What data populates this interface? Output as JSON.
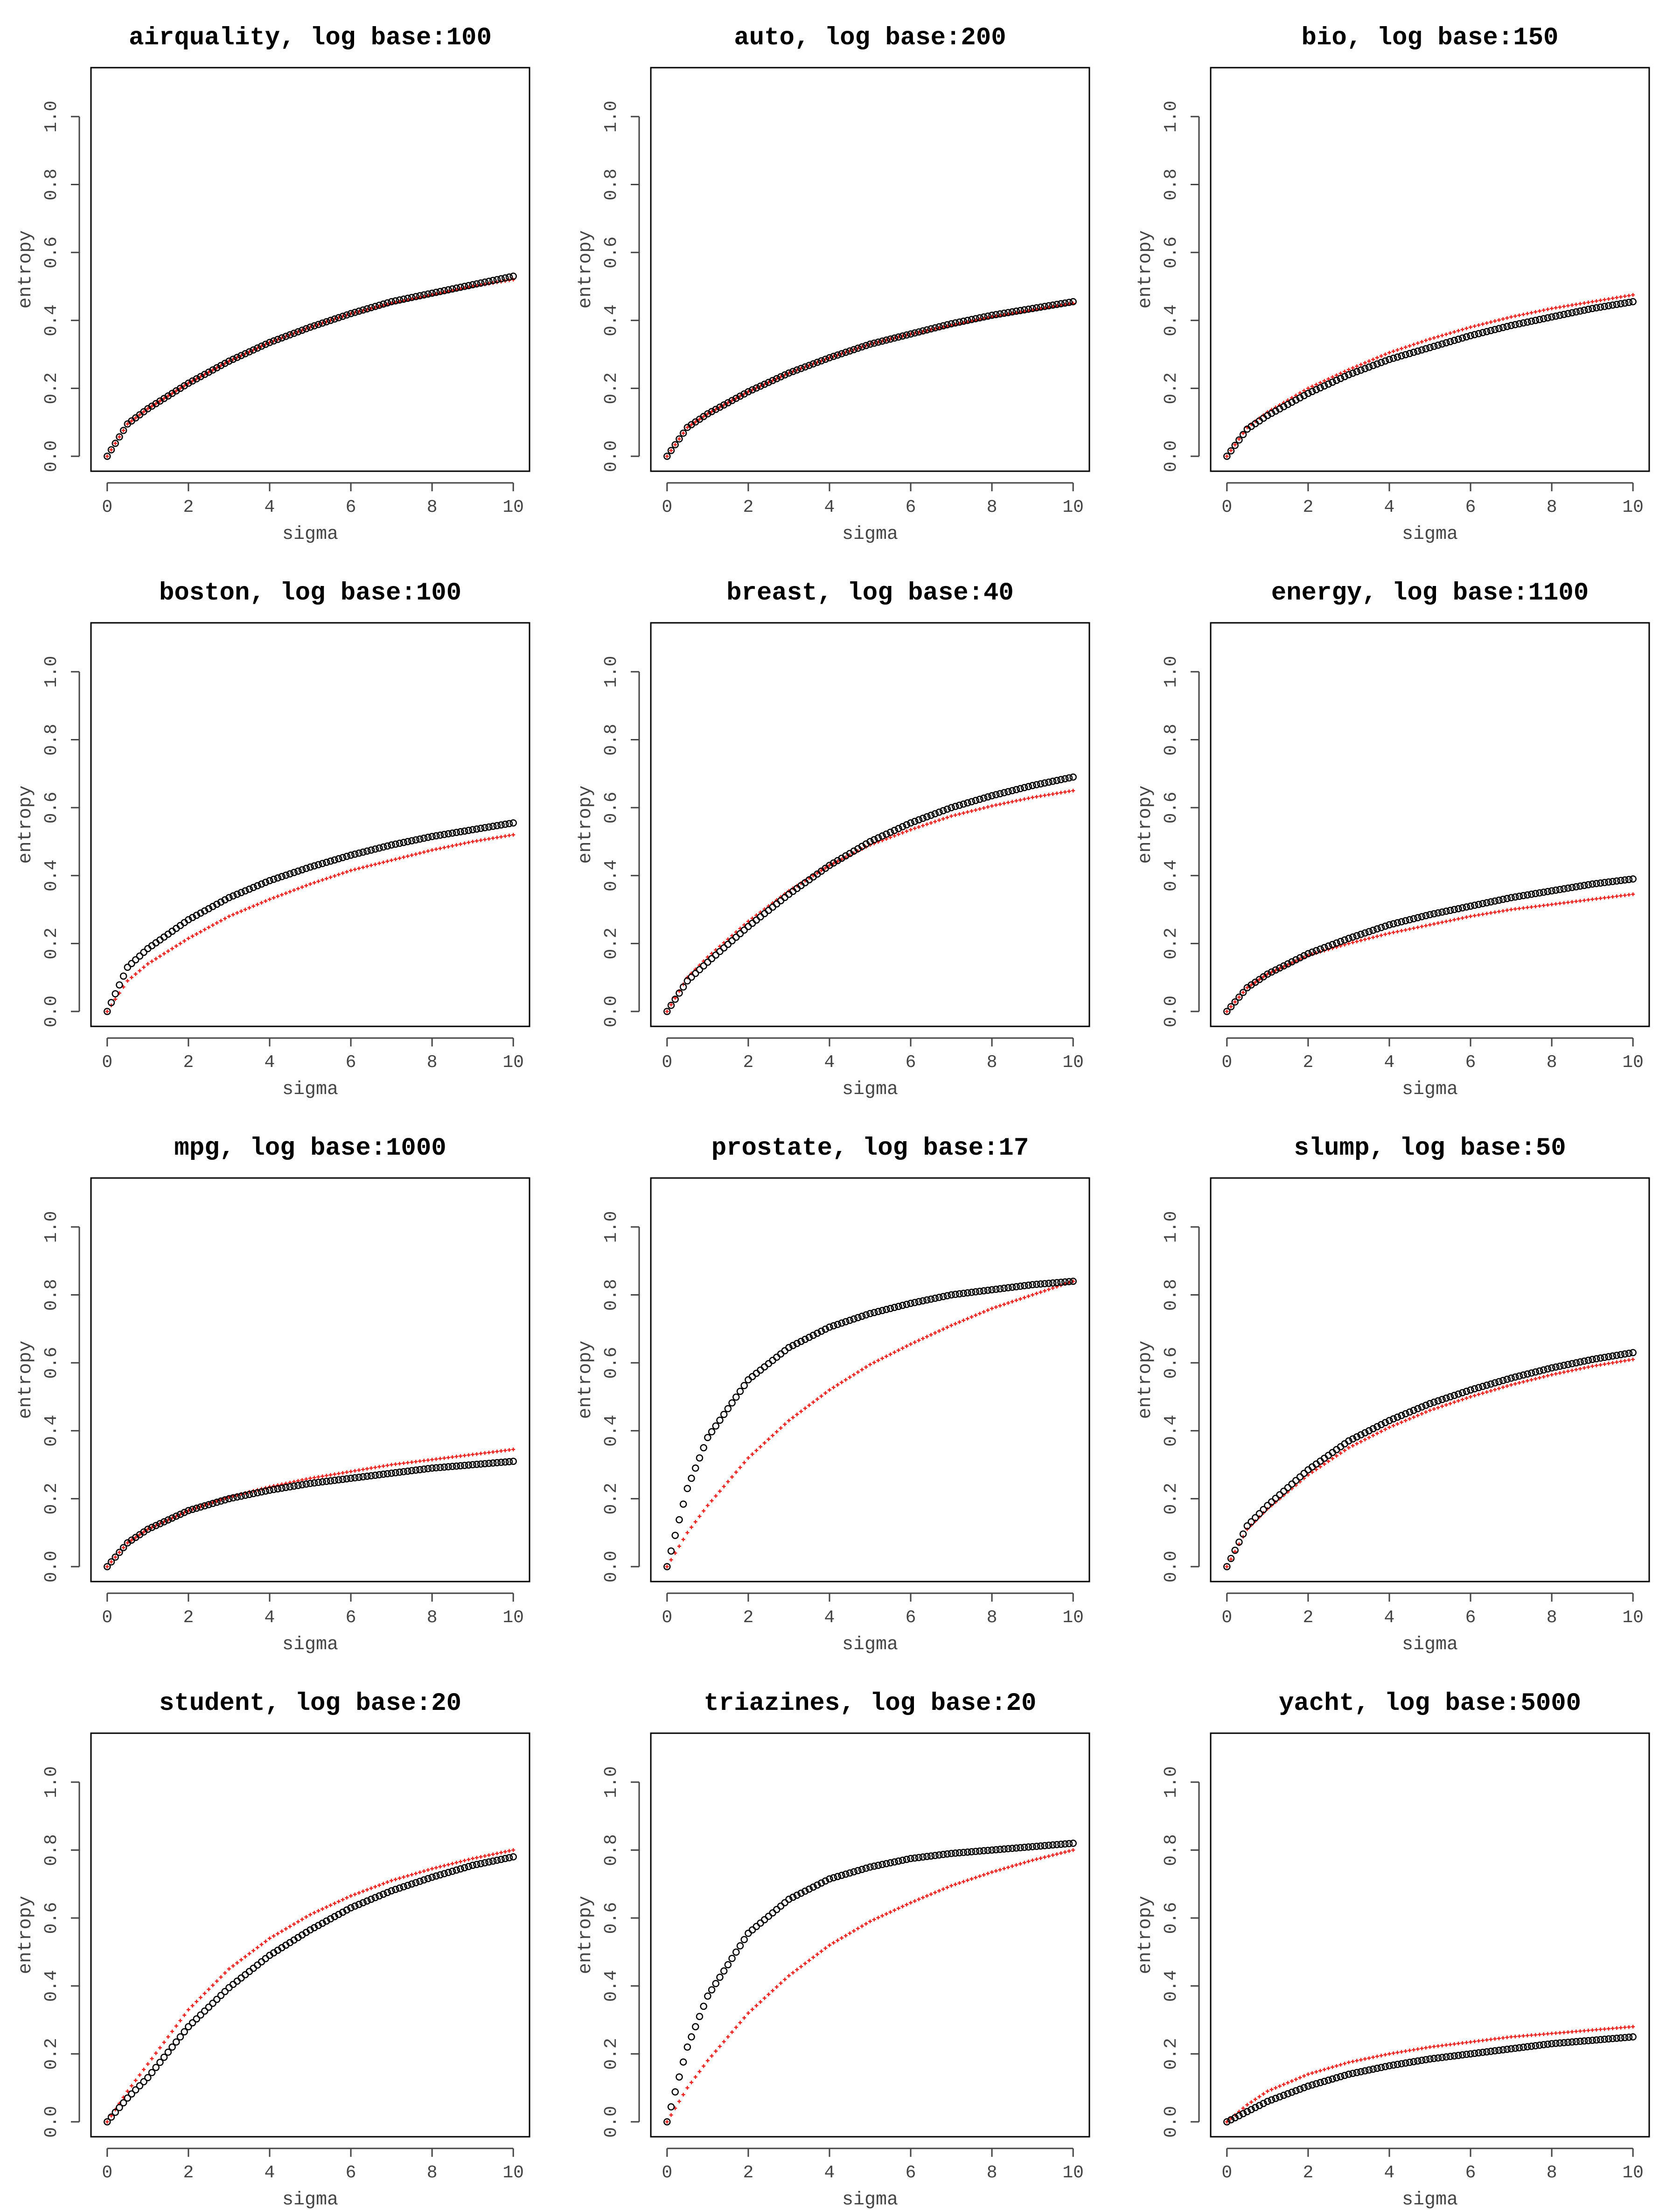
{
  "colors": {
    "black_series": "#000000",
    "red_series": "#e8201e"
  },
  "chart_data": [
    {
      "type": "scatter",
      "title": "airquality, log base:100",
      "xlabel": "sigma",
      "ylabel": "entropy",
      "xlim": [
        0,
        10
      ],
      "ylim": [
        0,
        1.1
      ],
      "xticks": [
        "0",
        "2",
        "4",
        "6",
        "8",
        "10"
      ],
      "yticks": [
        "0.0",
        "0.2",
        "0.4",
        "0.6",
        "0.8",
        "1.0"
      ],
      "series": [
        {
          "name": "black",
          "marker": "circle",
          "x": [
            0,
            0.5,
            1,
            2,
            3,
            4,
            5,
            6,
            7,
            8,
            9,
            10
          ],
          "y": [
            0,
            0.095,
            0.14,
            0.215,
            0.28,
            0.335,
            0.38,
            0.42,
            0.455,
            0.48,
            0.505,
            0.53
          ]
        },
        {
          "name": "red",
          "marker": "plus",
          "x": [
            0,
            0.5,
            1,
            2,
            3,
            4,
            5,
            6,
            7,
            8,
            9,
            10
          ],
          "y": [
            0,
            0.095,
            0.14,
            0.215,
            0.28,
            0.335,
            0.38,
            0.42,
            0.45,
            0.475,
            0.5,
            0.52
          ]
        }
      ]
    },
    {
      "type": "scatter",
      "title": "auto, log base:200",
      "xlabel": "sigma",
      "ylabel": "entropy",
      "xlim": [
        0,
        10
      ],
      "ylim": [
        0,
        1.1
      ],
      "xticks": [
        "0",
        "2",
        "4",
        "6",
        "8",
        "10"
      ],
      "yticks": [
        "0.0",
        "0.2",
        "0.4",
        "0.6",
        "0.8",
        "1.0"
      ],
      "series": [
        {
          "name": "black",
          "marker": "circle",
          "x": [
            0,
            0.5,
            1,
            2,
            3,
            4,
            5,
            6,
            7,
            8,
            9,
            10
          ],
          "y": [
            0,
            0.085,
            0.125,
            0.19,
            0.245,
            0.29,
            0.33,
            0.36,
            0.39,
            0.415,
            0.435,
            0.455
          ]
        },
        {
          "name": "red",
          "marker": "plus",
          "x": [
            0,
            0.5,
            1,
            2,
            3,
            4,
            5,
            6,
            7,
            8,
            9,
            10
          ],
          "y": [
            0,
            0.085,
            0.125,
            0.19,
            0.245,
            0.29,
            0.33,
            0.36,
            0.385,
            0.41,
            0.43,
            0.45
          ]
        }
      ]
    },
    {
      "type": "scatter",
      "title": "bio, log base:150",
      "xlabel": "sigma",
      "ylabel": "entropy",
      "xlim": [
        0,
        10
      ],
      "ylim": [
        0,
        1.1
      ],
      "xticks": [
        "0",
        "2",
        "4",
        "6",
        "8",
        "10"
      ],
      "yticks": [
        "0.0",
        "0.2",
        "0.4",
        "0.6",
        "0.8",
        "1.0"
      ],
      "series": [
        {
          "name": "black",
          "marker": "circle",
          "x": [
            0,
            0.5,
            1,
            2,
            3,
            4,
            5,
            6,
            7,
            8,
            9,
            10
          ],
          "y": [
            0,
            0.08,
            0.12,
            0.185,
            0.24,
            0.285,
            0.32,
            0.355,
            0.385,
            0.41,
            0.435,
            0.455
          ]
        },
        {
          "name": "red",
          "marker": "plus",
          "x": [
            0,
            0.5,
            1,
            2,
            3,
            4,
            5,
            6,
            7,
            8,
            9,
            10
          ],
          "y": [
            0,
            0.085,
            0.13,
            0.2,
            0.255,
            0.305,
            0.345,
            0.38,
            0.41,
            0.435,
            0.455,
            0.475
          ]
        }
      ]
    },
    {
      "type": "scatter",
      "title": "boston, log base:100",
      "xlabel": "sigma",
      "ylabel": "entropy",
      "xlim": [
        0,
        10
      ],
      "ylim": [
        0,
        1.1
      ],
      "xticks": [
        "0",
        "2",
        "4",
        "6",
        "8",
        "10"
      ],
      "yticks": [
        "0.0",
        "0.2",
        "0.4",
        "0.6",
        "0.8",
        "1.0"
      ],
      "series": [
        {
          "name": "black",
          "marker": "circle",
          "x": [
            0,
            0.5,
            1,
            2,
            3,
            4,
            5,
            6,
            7,
            8,
            9,
            10
          ],
          "y": [
            0,
            0.13,
            0.185,
            0.27,
            0.335,
            0.385,
            0.425,
            0.46,
            0.49,
            0.515,
            0.535,
            0.555
          ]
        },
        {
          "name": "red",
          "marker": "plus",
          "x": [
            0,
            0.5,
            1,
            2,
            3,
            4,
            5,
            6,
            7,
            8,
            9,
            10
          ],
          "y": [
            0,
            0.09,
            0.14,
            0.215,
            0.28,
            0.33,
            0.375,
            0.415,
            0.445,
            0.475,
            0.5,
            0.52
          ]
        }
      ]
    },
    {
      "type": "scatter",
      "title": "breast, log base:40",
      "xlabel": "sigma",
      "ylabel": "entropy",
      "xlim": [
        0,
        10
      ],
      "ylim": [
        0,
        1.1
      ],
      "xticks": [
        "0",
        "2",
        "4",
        "6",
        "8",
        "10"
      ],
      "yticks": [
        "0.0",
        "0.2",
        "0.4",
        "0.6",
        "0.8",
        "1.0"
      ],
      "series": [
        {
          "name": "black",
          "marker": "circle",
          "x": [
            0,
            0.5,
            1,
            2,
            3,
            4,
            5,
            6,
            7,
            8,
            9,
            10
          ],
          "y": [
            0,
            0.09,
            0.145,
            0.25,
            0.345,
            0.43,
            0.5,
            0.555,
            0.6,
            0.635,
            0.665,
            0.69
          ]
        },
        {
          "name": "red",
          "marker": "plus",
          "x": [
            0,
            0.5,
            1,
            2,
            3,
            4,
            5,
            6,
            7,
            8,
            9,
            10
          ],
          "y": [
            0,
            0.1,
            0.16,
            0.265,
            0.355,
            0.43,
            0.49,
            0.535,
            0.575,
            0.605,
            0.63,
            0.65
          ]
        }
      ]
    },
    {
      "type": "scatter",
      "title": "energy, log base:1100",
      "xlabel": "sigma",
      "ylabel": "entropy",
      "xlim": [
        0,
        10
      ],
      "ylim": [
        0,
        1.1
      ],
      "xticks": [
        "0",
        "2",
        "4",
        "6",
        "8",
        "10"
      ],
      "yticks": [
        "0.0",
        "0.2",
        "0.4",
        "0.6",
        "0.8",
        "1.0"
      ],
      "series": [
        {
          "name": "black",
          "marker": "circle",
          "x": [
            0,
            0.5,
            1,
            2,
            3,
            4,
            5,
            6,
            7,
            8,
            9,
            10
          ],
          "y": [
            0,
            0.07,
            0.11,
            0.17,
            0.215,
            0.255,
            0.285,
            0.31,
            0.335,
            0.355,
            0.375,
            0.39
          ]
        },
        {
          "name": "red",
          "marker": "plus",
          "x": [
            0,
            0.5,
            1,
            2,
            3,
            4,
            5,
            6,
            7,
            8,
            9,
            10
          ],
          "y": [
            0,
            0.07,
            0.11,
            0.165,
            0.2,
            0.23,
            0.255,
            0.28,
            0.3,
            0.315,
            0.33,
            0.345
          ]
        }
      ]
    },
    {
      "type": "scatter",
      "title": "mpg, log base:1000",
      "xlabel": "sigma",
      "ylabel": "entropy",
      "xlim": [
        0,
        10
      ],
      "ylim": [
        0,
        1.1
      ],
      "xticks": [
        "0",
        "2",
        "4",
        "6",
        "8",
        "10"
      ],
      "yticks": [
        "0.0",
        "0.2",
        "0.4",
        "0.6",
        "0.8",
        "1.0"
      ],
      "series": [
        {
          "name": "black",
          "marker": "circle",
          "x": [
            0,
            0.5,
            1,
            2,
            3,
            4,
            5,
            6,
            7,
            8,
            9,
            10
          ],
          "y": [
            0,
            0.07,
            0.11,
            0.165,
            0.2,
            0.225,
            0.245,
            0.26,
            0.275,
            0.29,
            0.3,
            0.31
          ]
        },
        {
          "name": "red",
          "marker": "plus",
          "x": [
            0,
            0.5,
            1,
            2,
            3,
            4,
            5,
            6,
            7,
            8,
            9,
            10
          ],
          "y": [
            0,
            0.07,
            0.11,
            0.165,
            0.205,
            0.235,
            0.26,
            0.28,
            0.3,
            0.315,
            0.33,
            0.345
          ]
        }
      ]
    },
    {
      "type": "scatter",
      "title": "prostate, log base:17",
      "xlabel": "sigma",
      "ylabel": "entropy",
      "xlim": [
        0,
        10
      ],
      "ylim": [
        0,
        1.1
      ],
      "xticks": [
        "0",
        "2",
        "4",
        "6",
        "8",
        "10"
      ],
      "yticks": [
        "0.0",
        "0.2",
        "0.4",
        "0.6",
        "0.8",
        "1.0"
      ],
      "series": [
        {
          "name": "black",
          "marker": "circle",
          "x": [
            0,
            0.5,
            1,
            2,
            3,
            4,
            5,
            6,
            7,
            8,
            9,
            10
          ],
          "y": [
            0,
            0.23,
            0.38,
            0.55,
            0.645,
            0.705,
            0.745,
            0.775,
            0.8,
            0.815,
            0.83,
            0.84
          ]
        },
        {
          "name": "red",
          "marker": "plus",
          "x": [
            0,
            0.5,
            1,
            2,
            3,
            4,
            5,
            6,
            7,
            8,
            9,
            10
          ],
          "y": [
            0,
            0.1,
            0.18,
            0.32,
            0.43,
            0.52,
            0.595,
            0.655,
            0.71,
            0.76,
            0.8,
            0.84
          ]
        }
      ]
    },
    {
      "type": "scatter",
      "title": "slump, log base:50",
      "xlabel": "sigma",
      "ylabel": "entropy",
      "xlim": [
        0,
        10
      ],
      "ylim": [
        0,
        1.1
      ],
      "xticks": [
        "0",
        "2",
        "4",
        "6",
        "8",
        "10"
      ],
      "yticks": [
        "0.0",
        "0.2",
        "0.4",
        "0.6",
        "0.8",
        "1.0"
      ],
      "series": [
        {
          "name": "black",
          "marker": "circle",
          "x": [
            0,
            0.5,
            1,
            2,
            3,
            4,
            5,
            6,
            7,
            8,
            9,
            10
          ],
          "y": [
            0,
            0.12,
            0.18,
            0.285,
            0.37,
            0.43,
            0.48,
            0.52,
            0.555,
            0.585,
            0.61,
            0.63
          ]
        },
        {
          "name": "red",
          "marker": "plus",
          "x": [
            0,
            0.5,
            1,
            2,
            3,
            4,
            5,
            6,
            7,
            8,
            9,
            10
          ],
          "y": [
            0,
            0.11,
            0.17,
            0.27,
            0.35,
            0.41,
            0.46,
            0.5,
            0.535,
            0.565,
            0.59,
            0.61
          ]
        }
      ]
    },
    {
      "type": "scatter",
      "title": "student, log base:20",
      "xlabel": "sigma",
      "ylabel": "entropy",
      "xlim": [
        0,
        10
      ],
      "ylim": [
        0,
        1.1
      ],
      "xticks": [
        "0",
        "2",
        "4",
        "6",
        "8",
        "10"
      ],
      "yticks": [
        "0.0",
        "0.2",
        "0.4",
        "0.6",
        "0.8",
        "1.0"
      ],
      "series": [
        {
          "name": "black",
          "marker": "circle",
          "x": [
            0,
            0.5,
            1,
            2,
            3,
            4,
            5,
            6,
            7,
            8,
            9,
            10
          ],
          "y": [
            0,
            0.07,
            0.13,
            0.28,
            0.395,
            0.49,
            0.565,
            0.63,
            0.68,
            0.72,
            0.755,
            0.78
          ]
        },
        {
          "name": "red",
          "marker": "plus",
          "x": [
            0,
            0.5,
            1,
            2,
            3,
            4,
            5,
            6,
            7,
            8,
            9,
            10
          ],
          "y": [
            0,
            0.09,
            0.17,
            0.33,
            0.45,
            0.54,
            0.61,
            0.665,
            0.71,
            0.745,
            0.775,
            0.8
          ]
        }
      ]
    },
    {
      "type": "scatter",
      "title": "triazines, log base:20",
      "xlabel": "sigma",
      "ylabel": "entropy",
      "xlim": [
        0,
        10
      ],
      "ylim": [
        0,
        1.1
      ],
      "xticks": [
        "0",
        "2",
        "4",
        "6",
        "8",
        "10"
      ],
      "yticks": [
        "0.0",
        "0.2",
        "0.4",
        "0.6",
        "0.8",
        "1.0"
      ],
      "series": [
        {
          "name": "black",
          "marker": "circle",
          "x": [
            0,
            0.5,
            1,
            2,
            3,
            4,
            5,
            6,
            7,
            8,
            9,
            10
          ],
          "y": [
            0,
            0.22,
            0.37,
            0.555,
            0.655,
            0.715,
            0.75,
            0.775,
            0.79,
            0.8,
            0.81,
            0.82
          ]
        },
        {
          "name": "red",
          "marker": "plus",
          "x": [
            0,
            0.5,
            1,
            2,
            3,
            4,
            5,
            6,
            7,
            8,
            9,
            10
          ],
          "y": [
            0,
            0.1,
            0.18,
            0.32,
            0.43,
            0.52,
            0.59,
            0.645,
            0.695,
            0.735,
            0.77,
            0.8
          ]
        }
      ]
    },
    {
      "type": "scatter",
      "title": "yacht, log base:5000",
      "xlabel": "sigma",
      "ylabel": "entropy",
      "xlim": [
        0,
        10
      ],
      "ylim": [
        0,
        1.1
      ],
      "xticks": [
        "0",
        "2",
        "4",
        "6",
        "8",
        "10"
      ],
      "yticks": [
        "0.0",
        "0.2",
        "0.4",
        "0.6",
        "0.8",
        "1.0"
      ],
      "series": [
        {
          "name": "black",
          "marker": "circle",
          "x": [
            0,
            0.5,
            1,
            2,
            3,
            4,
            5,
            6,
            7,
            8,
            9,
            10
          ],
          "y": [
            0,
            0.03,
            0.06,
            0.105,
            0.14,
            0.165,
            0.185,
            0.2,
            0.215,
            0.23,
            0.24,
            0.25
          ]
        },
        {
          "name": "red",
          "marker": "plus",
          "x": [
            0,
            0.5,
            1,
            2,
            3,
            4,
            5,
            6,
            7,
            8,
            9,
            10
          ],
          "y": [
            0,
            0.05,
            0.09,
            0.14,
            0.175,
            0.2,
            0.22,
            0.235,
            0.25,
            0.26,
            0.27,
            0.28
          ]
        }
      ]
    }
  ]
}
